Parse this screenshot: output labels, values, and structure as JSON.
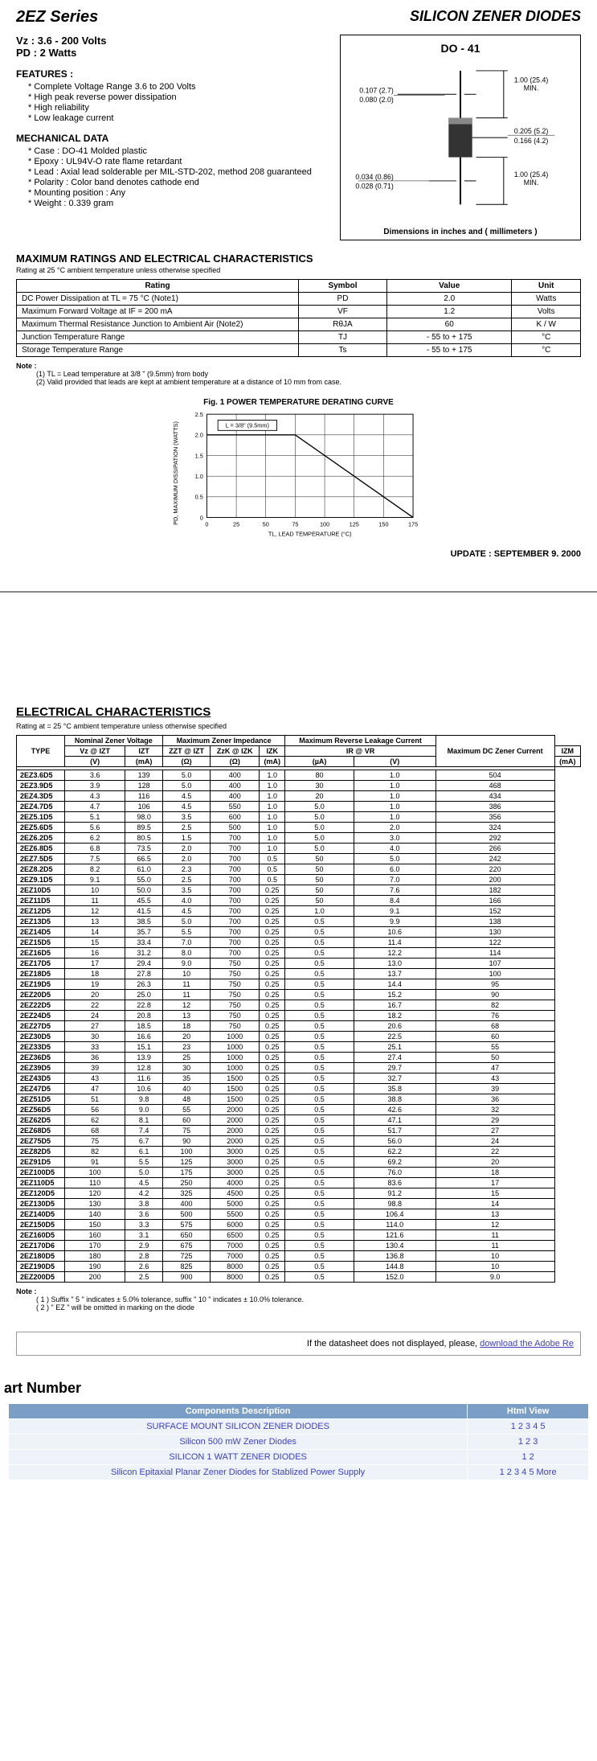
{
  "header": {
    "series": "2EZ  Series",
    "product": "SILICON ZENER DIODES",
    "vz_label": "Vz : 3.6 - 200 Volts",
    "pd_label": "PD : 2 Watts",
    "package_title": "DO - 41",
    "package_caption": "Dimensions in inches and ( millimeters )"
  },
  "package_dims": {
    "lead_dia_top": "0.107 (2.7)",
    "lead_dia_bot": "0.080 (2.0)",
    "lead_len_top": "1.00 (25.4)",
    "lead_len_bot": "MIN.",
    "body_dia_top": "0.205 (5.2)",
    "body_dia_bot": "0.166 (4.2)",
    "body_len_top": "0.034 (0.86)",
    "body_len_bot": "0.028 (0.71)",
    "lead_len2_top": "1.00 (25.4)",
    "lead_len2_bot": "MIN."
  },
  "features": {
    "title": "FEATURES :",
    "items": [
      "Complete Voltage Range 3.6 to 200 Volts",
      "High peak reverse power dissipation",
      "High reliability",
      "Low leakage current"
    ]
  },
  "mechanical": {
    "title": "MECHANICAL DATA",
    "items": [
      "Case : DO-41 Molded plastic",
      "Epoxy : UL94V-O rate flame retardant",
      "Lead : Axial lead solderable per MIL-STD-202, method 208 guaranteed",
      "Polarity : Color band denotes cathode end",
      "Mounting position : Any",
      "Weight : 0.339 gram"
    ]
  },
  "ratings": {
    "title": "MAXIMUM RATINGS AND ELECTRICAL CHARACTERISTICS",
    "subtitle": "Rating at 25 °C ambient temperature unless otherwise specified",
    "headers": [
      "Rating",
      "Symbol",
      "Value",
      "Unit"
    ],
    "rows": [
      [
        "DC Power Dissipation at TL = 75 °C (Note1)",
        "PD",
        "2.0",
        "Watts"
      ],
      [
        "Maximum Forward Voltage at IF = 200 mA",
        "VF",
        "1.2",
        "Volts"
      ],
      [
        "Maximum Thermal Resistance Junction to Ambient Air (Note2)",
        "RθJA",
        "60",
        "K / W"
      ],
      [
        "Junction Temperature Range",
        "TJ",
        "- 55 to + 175",
        "°C"
      ],
      [
        "Storage Temperature Range",
        "Ts",
        "- 55 to + 175",
        "°C"
      ]
    ],
    "note_label": "Note :",
    "notes": [
      "(1) TL = Lead temperature at 3/8 \" (9.5mm) from body",
      "(2) Valid provided that leads are kept at ambient temperature at a distance of 10 mm from case."
    ]
  },
  "chart": {
    "title": "Fig. 1  POWER TEMPERATURE DERATING CURVE",
    "legend": "L = 3/8\" (9.5mm)",
    "ylabel": "PD, MAXIMUM DISSIPATION (WATTS)",
    "xlabel": "TL, LEAD TEMPERATURE (°C)",
    "xticks": [
      "0",
      "25",
      "50",
      "75",
      "100",
      "125",
      "150",
      "175"
    ],
    "yticks": [
      "0",
      "0.5",
      "1.0",
      "1.5",
      "2.0",
      "2.5"
    ],
    "line_points": [
      [
        0,
        2.0
      ],
      [
        75,
        2.0
      ],
      [
        175,
        0
      ]
    ],
    "colors": {
      "grid": "#000",
      "bg": "#fff",
      "line": "#000"
    }
  },
  "update": "UPDATE : SEPTEMBER 9. 2000",
  "ec": {
    "title": "ELECTRICAL CHARACTERISTICS",
    "subtitle": "Rating at  = 25 °C ambient temperature unless otherwise specified",
    "group_headers": [
      "TYPE",
      "Nominal Zener Voltage",
      "Maximum Zener Impedance",
      "Maximum Reverse Leakage Current",
      "Maximum DC Zener Current"
    ],
    "sub_headers1": [
      "Vz @ IZT",
      "IZT",
      "ZZT @ IZT",
      "ZzK @ IZK",
      "IZK",
      "IR  @  VR",
      "IZM"
    ],
    "sub_headers2": [
      "(V)",
      "(mA)",
      "(Ω)",
      "(Ω)",
      "(mA)",
      "(µA)",
      "(V)",
      "(mA)"
    ],
    "rows": [
      [
        "2EZ3.6D5",
        "3.6",
        "139",
        "5.0",
        "400",
        "1.0",
        "80",
        "1.0",
        "504"
      ],
      [
        "2EZ3.9D5",
        "3.9",
        "128",
        "5.0",
        "400",
        "1.0",
        "30",
        "1.0",
        "468"
      ],
      [
        "2EZ4.3D5",
        "4.3",
        "116",
        "4.5",
        "400",
        "1.0",
        "20",
        "1.0",
        "434"
      ],
      [
        "2EZ4.7D5",
        "4.7",
        "106",
        "4.5",
        "550",
        "1.0",
        "5.0",
        "1.0",
        "386"
      ],
      [
        "2EZ5.1D5",
        "5.1",
        "98.0",
        "3.5",
        "600",
        "1.0",
        "5.0",
        "1.0",
        "356"
      ],
      [
        "2EZ5.6D5",
        "5.6",
        "89.5",
        "2.5",
        "500",
        "1.0",
        "5.0",
        "2.0",
        "324"
      ],
      [
        "2EZ6.2D5",
        "6.2",
        "80.5",
        "1.5",
        "700",
        "1.0",
        "5.0",
        "3.0",
        "292"
      ],
      [
        "2EZ6.8D5",
        "6.8",
        "73.5",
        "2.0",
        "700",
        "1.0",
        "5.0",
        "4.0",
        "266"
      ],
      [
        "2EZ7.5D5",
        "7.5",
        "66.5",
        "2.0",
        "700",
        "0.5",
        "50",
        "5.0",
        "242"
      ],
      [
        "2EZ8.2D5",
        "8.2",
        "61.0",
        "2.3",
        "700",
        "0.5",
        "50",
        "6.0",
        "220"
      ],
      [
        "2EZ9.1D5",
        "9.1",
        "55.0",
        "2.5",
        "700",
        "0.5",
        "50",
        "7.0",
        "200"
      ],
      [
        "2EZ10D5",
        "10",
        "50.0",
        "3.5",
        "700",
        "0.25",
        "50",
        "7.6",
        "182"
      ],
      [
        "2EZ11D5",
        "11",
        "45.5",
        "4.0",
        "700",
        "0.25",
        "50",
        "8.4",
        "166"
      ],
      [
        "2EZ12D5",
        "12",
        "41.5",
        "4.5",
        "700",
        "0.25",
        "1.0",
        "9.1",
        "152"
      ],
      [
        "2EZ13D5",
        "13",
        "38.5",
        "5.0",
        "700",
        "0.25",
        "0.5",
        "9.9",
        "138"
      ],
      [
        "2EZ14D5",
        "14",
        "35.7",
        "5.5",
        "700",
        "0.25",
        "0.5",
        "10.6",
        "130"
      ],
      [
        "2EZ15D5",
        "15",
        "33.4",
        "7.0",
        "700",
        "0.25",
        "0.5",
        "11.4",
        "122"
      ],
      [
        "2EZ16D5",
        "16",
        "31.2",
        "8.0",
        "700",
        "0.25",
        "0.5",
        "12.2",
        "114"
      ],
      [
        "2EZ17D5",
        "17",
        "29.4",
        "9.0",
        "750",
        "0.25",
        "0.5",
        "13.0",
        "107"
      ],
      [
        "2EZ18D5",
        "18",
        "27.8",
        "10",
        "750",
        "0.25",
        "0.5",
        "13.7",
        "100"
      ],
      [
        "2EZ19D5",
        "19",
        "26.3",
        "11",
        "750",
        "0.25",
        "0.5",
        "14.4",
        "95"
      ],
      [
        "2EZ20D5",
        "20",
        "25.0",
        "11",
        "750",
        "0.25",
        "0.5",
        "15.2",
        "90"
      ],
      [
        "2EZ22D5",
        "22",
        "22.8",
        "12",
        "750",
        "0.25",
        "0.5",
        "16.7",
        "82"
      ],
      [
        "2EZ24D5",
        "24",
        "20.8",
        "13",
        "750",
        "0.25",
        "0.5",
        "18.2",
        "76"
      ],
      [
        "2EZ27D5",
        "27",
        "18.5",
        "18",
        "750",
        "0.25",
        "0.5",
        "20.6",
        "68"
      ],
      [
        "2EZ30D5",
        "30",
        "16.6",
        "20",
        "1000",
        "0.25",
        "0.5",
        "22.5",
        "60"
      ],
      [
        "2EZ33D5",
        "33",
        "15.1",
        "23",
        "1000",
        "0.25",
        "0.5",
        "25.1",
        "55"
      ],
      [
        "2EZ36D5",
        "36",
        "13.9",
        "25",
        "1000",
        "0.25",
        "0.5",
        "27.4",
        "50"
      ],
      [
        "2EZ39D5",
        "39",
        "12.8",
        "30",
        "1000",
        "0.25",
        "0.5",
        "29.7",
        "47"
      ],
      [
        "2EZ43D5",
        "43",
        "11.6",
        "35",
        "1500",
        "0.25",
        "0.5",
        "32.7",
        "43"
      ],
      [
        "2EZ47D5",
        "47",
        "10.6",
        "40",
        "1500",
        "0.25",
        "0.5",
        "35.8",
        "39"
      ],
      [
        "2EZ51D5",
        "51",
        "9.8",
        "48",
        "1500",
        "0.25",
        "0.5",
        "38.8",
        "36"
      ],
      [
        "2EZ56D5",
        "56",
        "9.0",
        "55",
        "2000",
        "0.25",
        "0.5",
        "42.6",
        "32"
      ],
      [
        "2EZ62D5",
        "62",
        "8.1",
        "60",
        "2000",
        "0.25",
        "0.5",
        "47.1",
        "29"
      ],
      [
        "2EZ68D5",
        "68",
        "7.4",
        "75",
        "2000",
        "0.25",
        "0.5",
        "51.7",
        "27"
      ],
      [
        "2EZ75D5",
        "75",
        "6.7",
        "90",
        "2000",
        "0.25",
        "0.5",
        "56.0",
        "24"
      ],
      [
        "2EZ82D5",
        "82",
        "6.1",
        "100",
        "3000",
        "0.25",
        "0.5",
        "62.2",
        "22"
      ],
      [
        "2EZ91D5",
        "91",
        "5.5",
        "125",
        "3000",
        "0.25",
        "0.5",
        "69.2",
        "20"
      ],
      [
        "2EZ100D5",
        "100",
        "5.0",
        "175",
        "3000",
        "0.25",
        "0.5",
        "76.0",
        "18"
      ],
      [
        "2EZ110D5",
        "110",
        "4.5",
        "250",
        "4000",
        "0.25",
        "0.5",
        "83.6",
        "17"
      ],
      [
        "2EZ120D5",
        "120",
        "4.2",
        "325",
        "4500",
        "0.25",
        "0.5",
        "91.2",
        "15"
      ],
      [
        "2EZ130D5",
        "130",
        "3.8",
        "400",
        "5000",
        "0.25",
        "0.5",
        "98.8",
        "14"
      ],
      [
        "2EZ140D5",
        "140",
        "3.6",
        "500",
        "5500",
        "0.25",
        "0.5",
        "106.4",
        "13"
      ],
      [
        "2EZ150D5",
        "150",
        "3.3",
        "575",
        "6000",
        "0.25",
        "0.5",
        "114.0",
        "12"
      ],
      [
        "2EZ160D5",
        "160",
        "3.1",
        "650",
        "6500",
        "0.25",
        "0.5",
        "121.6",
        "11"
      ],
      [
        "2EZ170D6",
        "170",
        "2.9",
        "675",
        "7000",
        "0.25",
        "0.5",
        "130.4",
        "11"
      ],
      [
        "2EZ180D5",
        "180",
        "2.8",
        "725",
        "7000",
        "0.25",
        "0.5",
        "136.8",
        "10"
      ],
      [
        "2EZ190D5",
        "190",
        "2.6",
        "825",
        "8000",
        "0.25",
        "0.5",
        "144.8",
        "10"
      ],
      [
        "2EZ200D5",
        "200",
        "2.5",
        "900",
        "8000",
        "0.25",
        "0.5",
        "152.0",
        "9.0"
      ]
    ],
    "note_label": "Note :",
    "notes": [
      "( 1 )  Suffix \" 5 \" indicates ± 5.0% tolerance, suffix \" 10 \" indicates ± 10.0% tolerance.",
      "( 2 )  \" EZ \" will be omitted in marking on the diode"
    ]
  },
  "adobe": {
    "text": "If the datasheet does not displayed, please, ",
    "link": "download the Adobe Re"
  },
  "parts": {
    "title": "art Number",
    "headers": [
      "Components Description",
      "Html View"
    ],
    "rows": [
      [
        "SURFACE MOUNT SILICON ZENER DIODES",
        "1 2 3 4 5"
      ],
      [
        "Silicon 500 mW Zener Diodes",
        "1 2 3"
      ],
      [
        "SILICON 1 WATT ZENER DIODES",
        "1 2"
      ],
      [
        "Silicon Epitaxial Planar Zener Diodes for Stablized Power Supply",
        "1 2 3 4 5 More"
      ]
    ]
  }
}
